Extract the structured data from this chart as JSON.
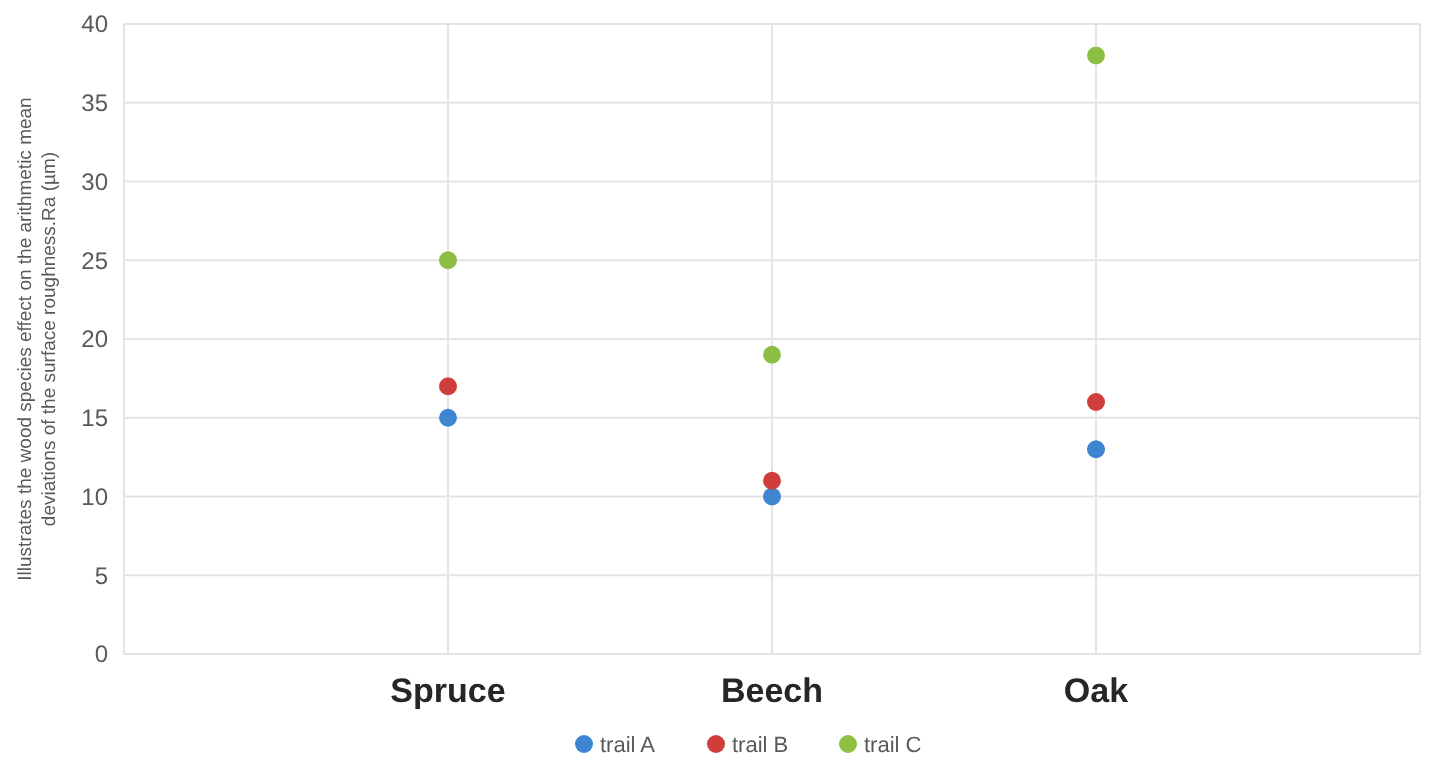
{
  "chart_data": {
    "type": "scatter",
    "ylabel": "Illustrates the wood species effect on the arithmetic mean\ndeviations of the surface roughness.Ra (µm)",
    "categories": [
      "Spruce",
      "Beech",
      "Oak"
    ],
    "series": [
      {
        "name": "trail A",
        "color": "#3f86d2",
        "values": [
          15,
          10,
          13
        ]
      },
      {
        "name": "trail B",
        "color": "#cf3e3a",
        "values": [
          17,
          11,
          16
        ]
      },
      {
        "name": "trail C",
        "color": "#8dbf45",
        "values": [
          25,
          19,
          38
        ]
      }
    ],
    "ylim": [
      0,
      40
    ],
    "yticks": [
      0,
      5,
      10,
      15,
      20,
      25,
      30,
      35,
      40
    ],
    "grid": true,
    "legend": "bottom",
    "marker": "circle"
  }
}
